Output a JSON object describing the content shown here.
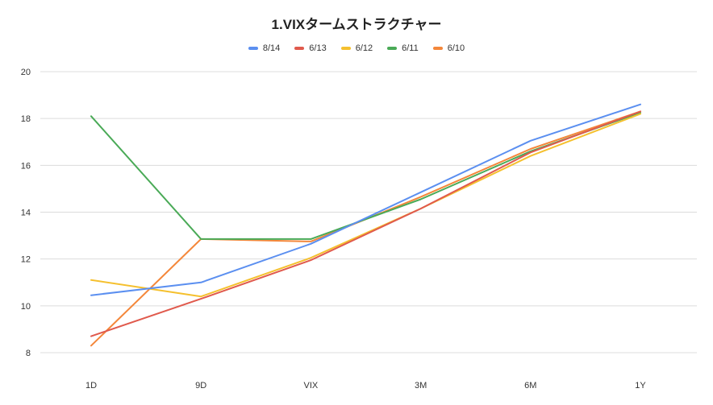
{
  "chart_data": {
    "type": "line",
    "title": "1.VIXタームストラクチャー",
    "xlabel": "",
    "ylabel": "",
    "categories": [
      "1D",
      "9D",
      "VIX",
      "3M",
      "6M",
      "1Y"
    ],
    "ylim": [
      8,
      20
    ],
    "yticks": [
      8,
      10,
      12,
      14,
      16,
      18,
      20
    ],
    "grid": true,
    "legend_position": "top",
    "series": [
      {
        "name": "8/14",
        "color": "#5b8ff0",
        "values": [
          10.45,
          11.0,
          12.65,
          14.85,
          17.05,
          18.6
        ]
      },
      {
        "name": "6/13",
        "color": "#e05a4d",
        "values": [
          8.7,
          10.3,
          11.95,
          14.15,
          16.55,
          18.3
        ]
      },
      {
        "name": "6/12",
        "color": "#f5c02e",
        "values": [
          11.1,
          10.4,
          12.05,
          14.15,
          16.4,
          18.2
        ]
      },
      {
        "name": "6/11",
        "color": "#4aaa57",
        "values": [
          18.1,
          12.85,
          12.85,
          14.55,
          16.6,
          18.25
        ]
      },
      {
        "name": "6/10",
        "color": "#f4873a",
        "values": [
          8.3,
          12.85,
          12.75,
          14.65,
          16.7,
          18.3
        ]
      }
    ]
  }
}
